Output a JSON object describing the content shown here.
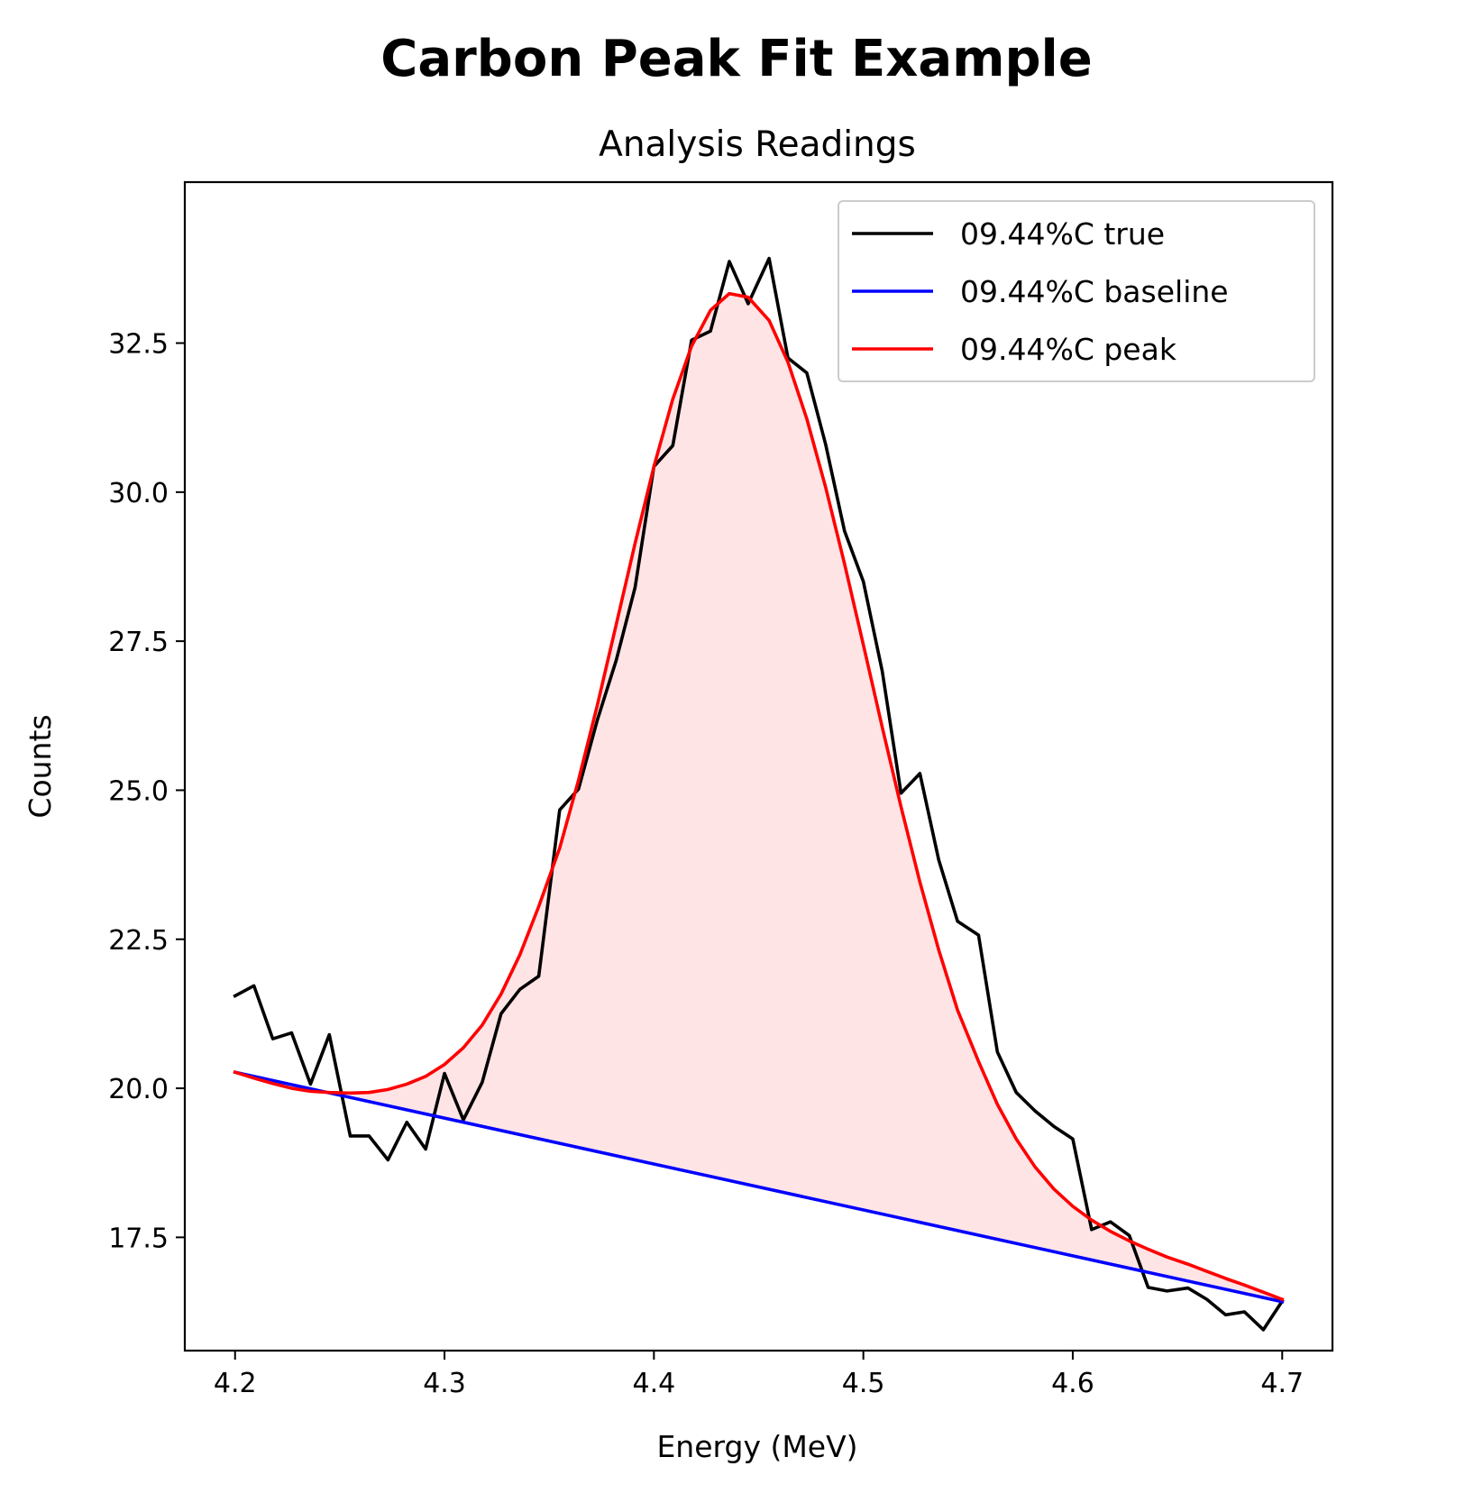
{
  "chart_data": {
    "type": "line",
    "title": "Carbon Peak Fit Example",
    "subtitle": "Analysis Readings",
    "xlabel": "Energy (MeV)",
    "ylabel": "Counts",
    "xlim": [
      4.176,
      4.724
    ],
    "ylim": [
      15.6,
      35.2
    ],
    "xticks": [
      4.2,
      4.3,
      4.4,
      4.5,
      4.6,
      4.7
    ],
    "xtick_labels": [
      "4.2",
      "4.3",
      "4.4",
      "4.5",
      "4.6",
      "4.7"
    ],
    "yticks": [
      17.5,
      20.0,
      22.5,
      25.0,
      27.5,
      30.0,
      32.5
    ],
    "ytick_labels": [
      "17.5",
      "20.0",
      "22.5",
      "25.0",
      "27.5",
      "30.0",
      "32.5"
    ],
    "grid": false,
    "legend_position": "top-right",
    "fill_between": {
      "upper": "09.44%C peak",
      "lower": "09.44%C baseline",
      "color": "#ffe4e6"
    },
    "series": [
      {
        "name": "09.44%C true",
        "color": "#000000",
        "x": [
          4.2,
          4.209,
          4.218,
          4.227,
          4.236,
          4.245,
          4.255,
          4.264,
          4.273,
          4.282,
          4.291,
          4.3,
          4.309,
          4.318,
          4.327,
          4.336,
          4.345,
          4.355,
          4.364,
          4.373,
          4.382,
          4.391,
          4.4,
          4.409,
          4.418,
          4.427,
          4.436,
          4.445,
          4.455,
          4.464,
          4.473,
          4.482,
          4.491,
          4.5,
          4.509,
          4.518,
          4.527,
          4.536,
          4.545,
          4.555,
          4.564,
          4.573,
          4.582,
          4.591,
          4.6,
          4.609,
          4.618,
          4.627,
          4.636,
          4.645,
          4.655,
          4.664,
          4.673,
          4.682,
          4.691,
          4.7
        ],
        "y": [
          21.55,
          21.72,
          20.83,
          20.93,
          20.07,
          20.9,
          19.2,
          19.2,
          18.8,
          19.43,
          18.98,
          20.25,
          19.47,
          20.1,
          21.25,
          21.66,
          21.88,
          24.67,
          25.02,
          26.18,
          27.18,
          28.4,
          30.43,
          30.78,
          32.55,
          32.7,
          33.87,
          33.16,
          33.92,
          32.25,
          32.0,
          30.8,
          29.35,
          28.5,
          27.0,
          24.95,
          25.28,
          23.83,
          22.8,
          22.57,
          20.61,
          19.93,
          19.62,
          19.36,
          19.15,
          17.63,
          17.76,
          17.53,
          16.66,
          16.6,
          16.65,
          16.46,
          16.2,
          16.25,
          15.95,
          16.43
        ]
      },
      {
        "name": "09.44%C baseline",
        "color": "#0000ff",
        "x": [
          4.2,
          4.7
        ],
        "y": [
          20.27,
          16.42
        ]
      },
      {
        "name": "09.44%C peak",
        "color": "#ff0000",
        "x": [
          4.2,
          4.209,
          4.218,
          4.227,
          4.236,
          4.245,
          4.255,
          4.264,
          4.273,
          4.282,
          4.291,
          4.3,
          4.309,
          4.318,
          4.327,
          4.336,
          4.345,
          4.355,
          4.364,
          4.373,
          4.382,
          4.391,
          4.4,
          4.409,
          4.418,
          4.427,
          4.436,
          4.445,
          4.455,
          4.464,
          4.473,
          4.482,
          4.491,
          4.5,
          4.509,
          4.518,
          4.527,
          4.536,
          4.545,
          4.555,
          4.564,
          4.573,
          4.582,
          4.591,
          4.6,
          4.609,
          4.618,
          4.627,
          4.636,
          4.645,
          4.655,
          4.664,
          4.673,
          4.682,
          4.691,
          4.7
        ],
        "y": [
          20.27,
          20.17,
          20.08,
          20.0,
          19.95,
          19.93,
          19.92,
          19.93,
          19.98,
          20.07,
          20.2,
          20.4,
          20.68,
          21.06,
          21.58,
          22.24,
          23.05,
          24.03,
          25.17,
          26.43,
          27.78,
          29.14,
          30.43,
          31.56,
          32.45,
          33.05,
          33.33,
          33.27,
          32.88,
          32.18,
          31.23,
          30.08,
          28.8,
          27.44,
          26.06,
          24.72,
          23.46,
          22.32,
          21.31,
          20.45,
          19.73,
          19.15,
          18.68,
          18.31,
          18.02,
          17.79,
          17.6,
          17.44,
          17.3,
          17.17,
          17.05,
          16.93,
          16.81,
          16.7,
          16.58,
          16.46
        ]
      }
    ]
  }
}
